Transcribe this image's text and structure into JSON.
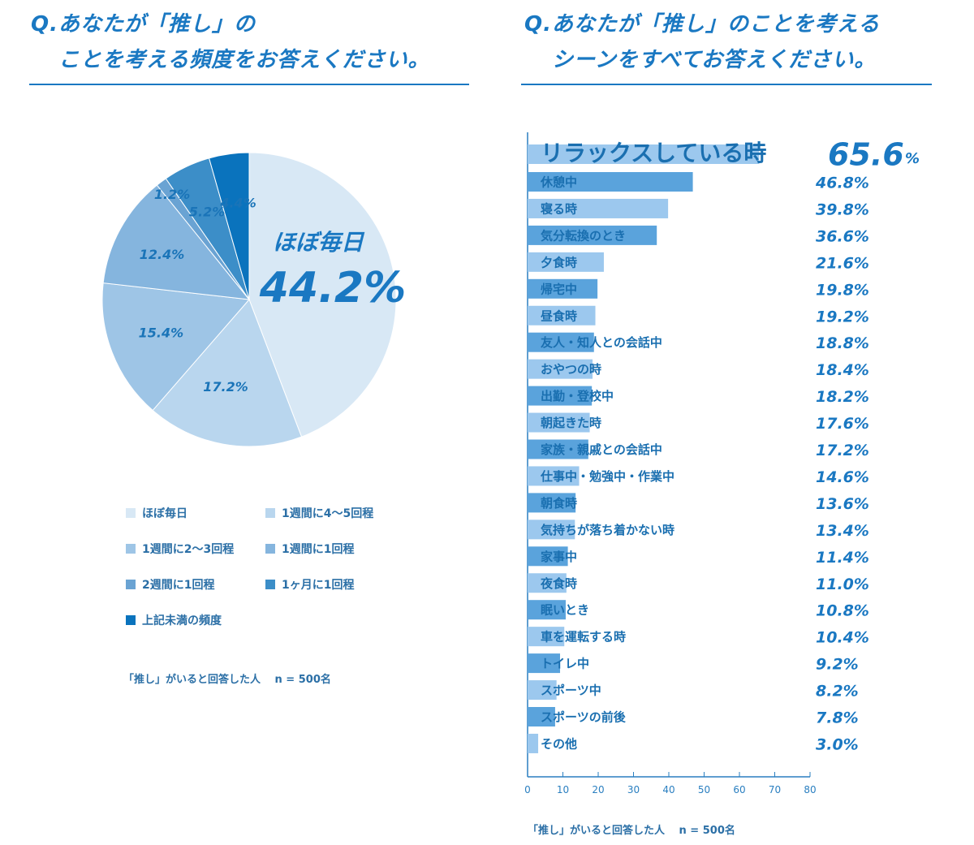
{
  "left": {
    "title_line1": "Q.あなたが「推し」の",
    "title_line2": "ことを考える頻度をお答えください。",
    "note": "「推し」がいると回答した人　 n = 500名"
  },
  "right": {
    "title_line1": "Q.あなたが「推し」のことを考える",
    "title_line2": "シーンをすべてお答えください。",
    "note": "「推し」がいると回答した人　 n = 500名"
  },
  "chart_data": [
    {
      "type": "pie",
      "title": "Q.あなたが「推し」のことを考える頻度をお答えください。",
      "labels": [
        "ほぼ毎日",
        "1週間に4〜5回程",
        "1週間に2〜3回程",
        "1週間に1回程",
        "2週間に1回程",
        "1ヶ月に1回程",
        "上記未満の頻度"
      ],
      "values": [
        44.2,
        17.2,
        15.4,
        12.4,
        1.2,
        5.2,
        4.4
      ],
      "value_labels": [
        "44.2%",
        "17.2%",
        "15.4%",
        "12.4%",
        "1.2%",
        "5.2%",
        "4.4%"
      ],
      "colors": [
        "#d8e8f5",
        "#b9d6ee",
        "#9ec5e6",
        "#85b5de",
        "#6aa3d3",
        "#3c8ec8",
        "#0a73bd"
      ],
      "highlight_label": "ほぼ毎日",
      "legend_position": "bottom"
    },
    {
      "type": "bar",
      "orientation": "horizontal",
      "title": "Q.あなたが「推し」のことを考えるシーンをすべてお答えください。",
      "categories": [
        "リラックスしている時",
        "休憩中",
        "寝る時",
        "気分転換のとき",
        "夕食時",
        "帰宅中",
        "昼食時",
        "友人・知人との会話中",
        "おやつの時",
        "出勤・登校中",
        "朝起きた時",
        "家族・親戚との会話中",
        "仕事中・勉強中・作業中",
        "朝食時",
        "気持ちが落ち着かない時",
        "家事中",
        "夜食時",
        "眠いとき",
        "車を運転する時",
        "トイレ中",
        "スポーツ中",
        "スポーツの前後",
        "その他"
      ],
      "values": [
        65.6,
        46.8,
        39.8,
        36.6,
        21.6,
        19.8,
        19.2,
        18.8,
        18.4,
        18.2,
        17.6,
        17.2,
        14.6,
        13.6,
        13.4,
        11.4,
        11.0,
        10.8,
        10.4,
        9.2,
        8.2,
        7.8,
        3.0
      ],
      "value_labels": [
        "65.6",
        "46.8%",
        "39.8%",
        "36.6%",
        "21.6%",
        "19.8%",
        "19.2%",
        "18.8%",
        "18.4%",
        "18.2%",
        "17.6%",
        "17.2%",
        "14.6%",
        "13.6%",
        "13.4%",
        "11.4%",
        "11.0%",
        "10.8%",
        "10.4%",
        "9.2%",
        "8.2%",
        "7.8%",
        "3.0%"
      ],
      "first_value_unit": "%",
      "x_ticks": [
        "0",
        "10",
        "20",
        "30",
        "40",
        "50",
        "60",
        "70",
        "80"
      ],
      "xlim": [
        0,
        80
      ],
      "bar_colors": [
        "#9cc8ee",
        "#5aa3dc"
      ]
    }
  ]
}
